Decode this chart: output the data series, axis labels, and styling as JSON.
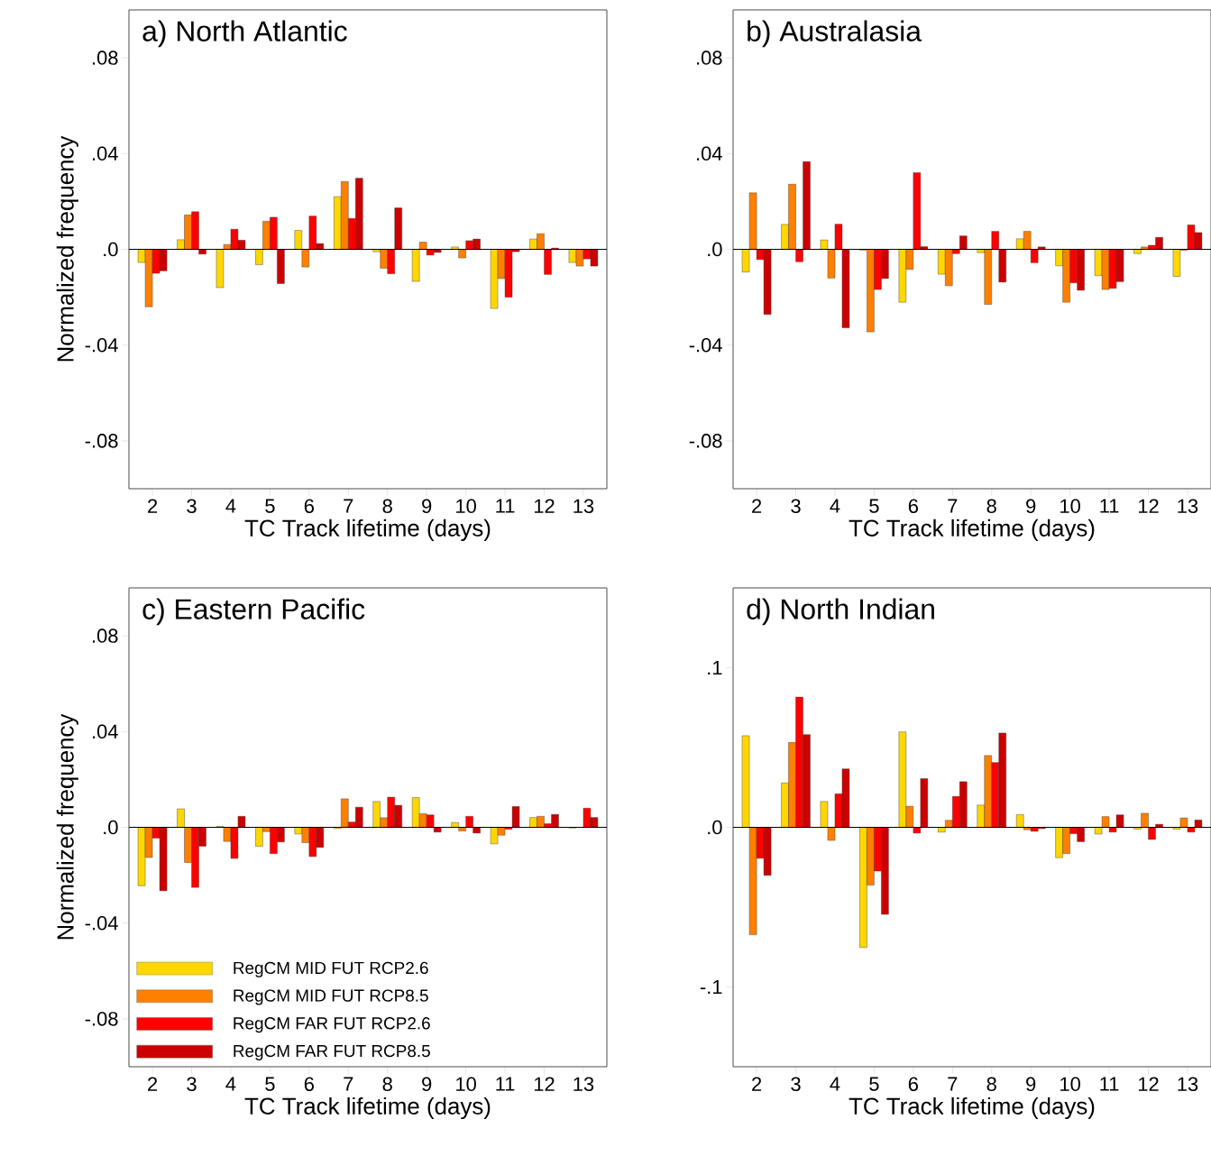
{
  "chart_data": [
    {
      "type": "bar",
      "title": "a) North Atlantic",
      "xlabel": "TC Track lifetime (days)",
      "ylabel": "Normalized frequency",
      "categories": [
        "2",
        "3",
        "4",
        "5",
        "6",
        "7",
        "8",
        "9",
        "10",
        "11",
        "12",
        "13"
      ],
      "ylim": [
        -0.1,
        0.1
      ],
      "yticks": [
        {
          "value": -0.08,
          "label": "-.08"
        },
        {
          "value": -0.04,
          "label": "-.04"
        },
        {
          "value": 0,
          "label": ".0"
        },
        {
          "value": 0.04,
          "label": ".04"
        },
        {
          "value": 0.08,
          "label": ".08"
        }
      ],
      "ref_lines": [
        {
          "axis": "y",
          "value": 0
        }
      ],
      "series": [
        {
          "color": "#ffd700",
          "values": [
            -0.0055,
            0.004,
            -0.016,
            -0.0064,
            0.0079,
            0.022,
            -0.001,
            -0.0134,
            0.001,
            -0.0247,
            0.0043,
            -0.0055
          ]
        },
        {
          "color": "#ff8000",
          "values": [
            -0.024,
            0.0144,
            0.002,
            0.0117,
            -0.0074,
            0.0283,
            -0.0079,
            0.003,
            -0.0036,
            -0.0122,
            0.0065,
            -0.007
          ]
        },
        {
          "color": "#ff0000",
          "values": [
            -0.01,
            0.0157,
            0.0084,
            0.0134,
            0.0139,
            0.0129,
            -0.0102,
            -0.0024,
            0.0036,
            -0.02,
            -0.0105,
            -0.004
          ]
        },
        {
          "color": "#cc0000",
          "values": [
            -0.009,
            -0.002,
            0.0038,
            -0.0143,
            0.0024,
            0.0297,
            0.0173,
            -0.0013,
            0.0043,
            -0.001,
            0.0005,
            -0.007
          ]
        }
      ]
    },
    {
      "type": "bar",
      "title": "b) Australasia",
      "xlabel": "TC Track lifetime (days)",
      "categories": [
        "2",
        "3",
        "4",
        "5",
        "6",
        "7",
        "8",
        "9",
        "10",
        "11",
        "12",
        "13"
      ],
      "ylim": [
        -0.1,
        0.1
      ],
      "yticks": [
        {
          "value": -0.08,
          "label": "-.08"
        },
        {
          "value": -0.04,
          "label": "-.04"
        },
        {
          "value": 0,
          "label": ".0"
        },
        {
          "value": 0.04,
          "label": ".04"
        },
        {
          "value": 0.08,
          "label": ".08"
        }
      ],
      "ref_lines": [
        {
          "axis": "y",
          "value": 0
        }
      ],
      "series": [
        {
          "color": "#ffd700",
          "values": [
            -0.0095,
            0.0104,
            0.0039,
            -0.0004,
            -0.0221,
            -0.0104,
            -0.0014,
            0.0044,
            -0.0069,
            -0.011,
            -0.0018,
            -0.0113
          ]
        },
        {
          "color": "#ff8000",
          "values": [
            0.0236,
            0.0272,
            -0.012,
            -0.0345,
            -0.0084,
            -0.0152,
            -0.023,
            0.0075,
            -0.0221,
            -0.0168,
            0.001,
            -0.0004
          ]
        },
        {
          "color": "#ff0000",
          "values": [
            -0.0043,
            -0.0052,
            0.0105,
            -0.0168,
            0.032,
            -0.0018,
            0.0075,
            -0.0056,
            -0.014,
            -0.0163,
            0.0017,
            0.0102
          ]
        },
        {
          "color": "#cc0000",
          "values": [
            -0.0272,
            0.0366,
            -0.0328,
            -0.0122,
            0.0011,
            0.0056,
            -0.0137,
            0.001,
            -0.0171,
            -0.0135,
            0.005,
            0.007
          ]
        }
      ]
    },
    {
      "type": "bar",
      "title": "c) Eastern Pacific",
      "xlabel": "TC Track lifetime (days)",
      "ylabel": "Normalized frequency",
      "categories": [
        "2",
        "3",
        "4",
        "5",
        "6",
        "7",
        "8",
        "9",
        "10",
        "11",
        "12",
        "13"
      ],
      "ylim": [
        -0.1,
        0.1
      ],
      "yticks": [
        {
          "value": -0.08,
          "label": "-.08"
        },
        {
          "value": -0.04,
          "label": "-.04"
        },
        {
          "value": 0,
          "label": ".0"
        },
        {
          "value": 0.04,
          "label": ".04"
        },
        {
          "value": 0.08,
          "label": ".08"
        }
      ],
      "ref_lines": [
        {
          "axis": "y",
          "value": 0
        }
      ],
      "legend": "bottom left",
      "series": [
        {
          "name": "RegCM MID FUT RCP2.6",
          "color": "#ffd700",
          "values": [
            -0.0244,
            0.0077,
            0.0004,
            -0.0079,
            -0.0028,
            -0.0005,
            0.0108,
            0.0124,
            0.002,
            -0.0069,
            0.0041,
            -0.0003
          ]
        },
        {
          "name": "RegCM MID FUT RCP8.5",
          "color": "#ff8000",
          "values": [
            -0.0126,
            -0.0147,
            -0.0059,
            -0.0018,
            -0.0064,
            0.0119,
            0.004,
            0.0057,
            -0.0015,
            -0.0033,
            0.0046,
            null
          ]
        },
        {
          "name": "RegCM FAR FUT RCP2.6",
          "color": "#ff0000",
          "values": [
            -0.0045,
            -0.0251,
            -0.013,
            -0.011,
            -0.0122,
            0.0022,
            0.0126,
            0.0052,
            0.0046,
            -0.0008,
            0.0015,
            0.008
          ]
        },
        {
          "name": "RegCM FAR FUT RCP8.5",
          "color": "#cc0000",
          "values": [
            -0.0265,
            -0.0079,
            0.0046,
            -0.0061,
            -0.0084,
            0.0084,
            0.0092,
            -0.002,
            -0.0024,
            0.0087,
            0.0054,
            0.0041
          ]
        }
      ]
    },
    {
      "type": "bar",
      "title": "d) North Indian",
      "xlabel": "TC Track lifetime (days)",
      "categories": [
        "2",
        "3",
        "4",
        "5",
        "6",
        "7",
        "8",
        "9",
        "10",
        "11",
        "12",
        "13"
      ],
      "ylim": [
        -0.15,
        0.15
      ],
      "yticks": [
        {
          "value": -0.1,
          "label": "-.1"
        },
        {
          "value": 0,
          "label": ".0"
        },
        {
          "value": 0.1,
          "label": ".1"
        }
      ],
      "ref_lines": [
        {
          "axis": "y",
          "value": 0
        }
      ],
      "series": [
        {
          "color": "#ffd700",
          "values": [
            0.0574,
            0.0278,
            0.0162,
            -0.0753,
            0.0598,
            -0.003,
            0.0139,
            0.008,
            -0.019,
            -0.0042,
            -0.0011,
            -0.0011
          ]
        },
        {
          "color": "#ff8000",
          "values": [
            -0.0673,
            0.0532,
            -0.0082,
            -0.0362,
            0.0132,
            0.0044,
            0.045,
            -0.0015,
            -0.0164,
            0.0067,
            0.0088,
            0.0059
          ]
        },
        {
          "color": "#ff0000",
          "values": [
            -0.0194,
            0.0816,
            0.021,
            -0.0274,
            -0.0036,
            0.0194,
            0.0406,
            -0.0025,
            -0.004,
            -0.003,
            -0.0076,
            -0.003
          ]
        },
        {
          "color": "#cc0000",
          "values": [
            -0.0301,
            0.0581,
            0.0366,
            -0.0545,
            0.0305,
            0.0286,
            0.0591,
            -0.0008,
            -0.009,
            0.0078,
            0.0019,
            0.0046
          ]
        }
      ]
    }
  ]
}
